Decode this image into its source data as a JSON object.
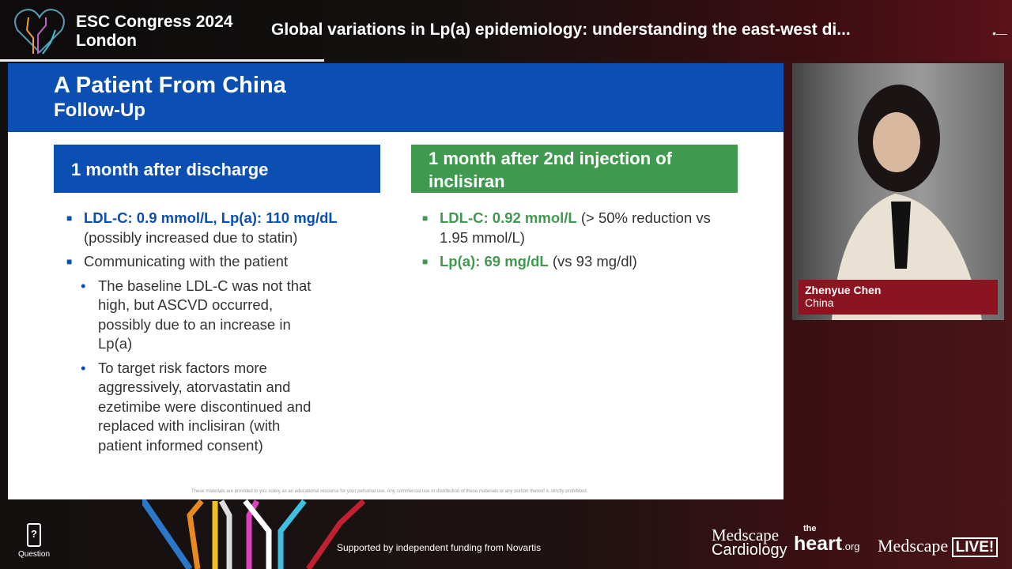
{
  "header": {
    "conference_line1": "ESC Congress 2024",
    "conference_line2": "London",
    "session_title": "Global variations in Lp(a) epidemiology: understanding the east-west di...",
    "progress_fraction": 0.32
  },
  "slide": {
    "title": "A Patient From China",
    "subtitle": "Follow-Up",
    "left_box": "1 month after discharge",
    "right_box": "1 month after 2nd injection of inclisiran",
    "left_items": [
      {
        "bold": "LDL-C: 0.9 mmol/L, Lp(a): 110 mg/dL",
        "text": "(possibly increased due to statin)"
      },
      {
        "text": "Communicating with the patient"
      }
    ],
    "left_subitems": [
      "The baseline LDL-C was not that high, but ASCVD occurred, possibly due to an increase in Lp(a)",
      "To target risk factors more aggressively, atorvastatin and ezetimibe were discontinued and replaced with inclisiran (with patient informed consent)"
    ],
    "right_items": [
      {
        "bold": "LDL-C: 0.92 mmol/L",
        "text": " (> 50% reduction vs 1.95 mmol/L)"
      },
      {
        "bold": "Lp(a): 69 mg/dL",
        "text": " (vs 93 mg/dl)"
      }
    ],
    "disclaimer": "These materials are provided to you solely as an educational resource for your personal use. Any commercial use or distribution of these materials or any portion thereof is strictly prohibited."
  },
  "speaker": {
    "name": "Zhenyue Chen",
    "country": "China"
  },
  "footer": {
    "question_label": "Question",
    "funding": "Supported by independent funding from Novartis",
    "brand1_line1": "Medscape",
    "brand1_line2": "Cardiology",
    "brand2_small": "the",
    "brand2_big": "heart",
    "brand2_suffix": ".org",
    "brand3": "Medscape",
    "brand3_badge": "LIVE!"
  }
}
